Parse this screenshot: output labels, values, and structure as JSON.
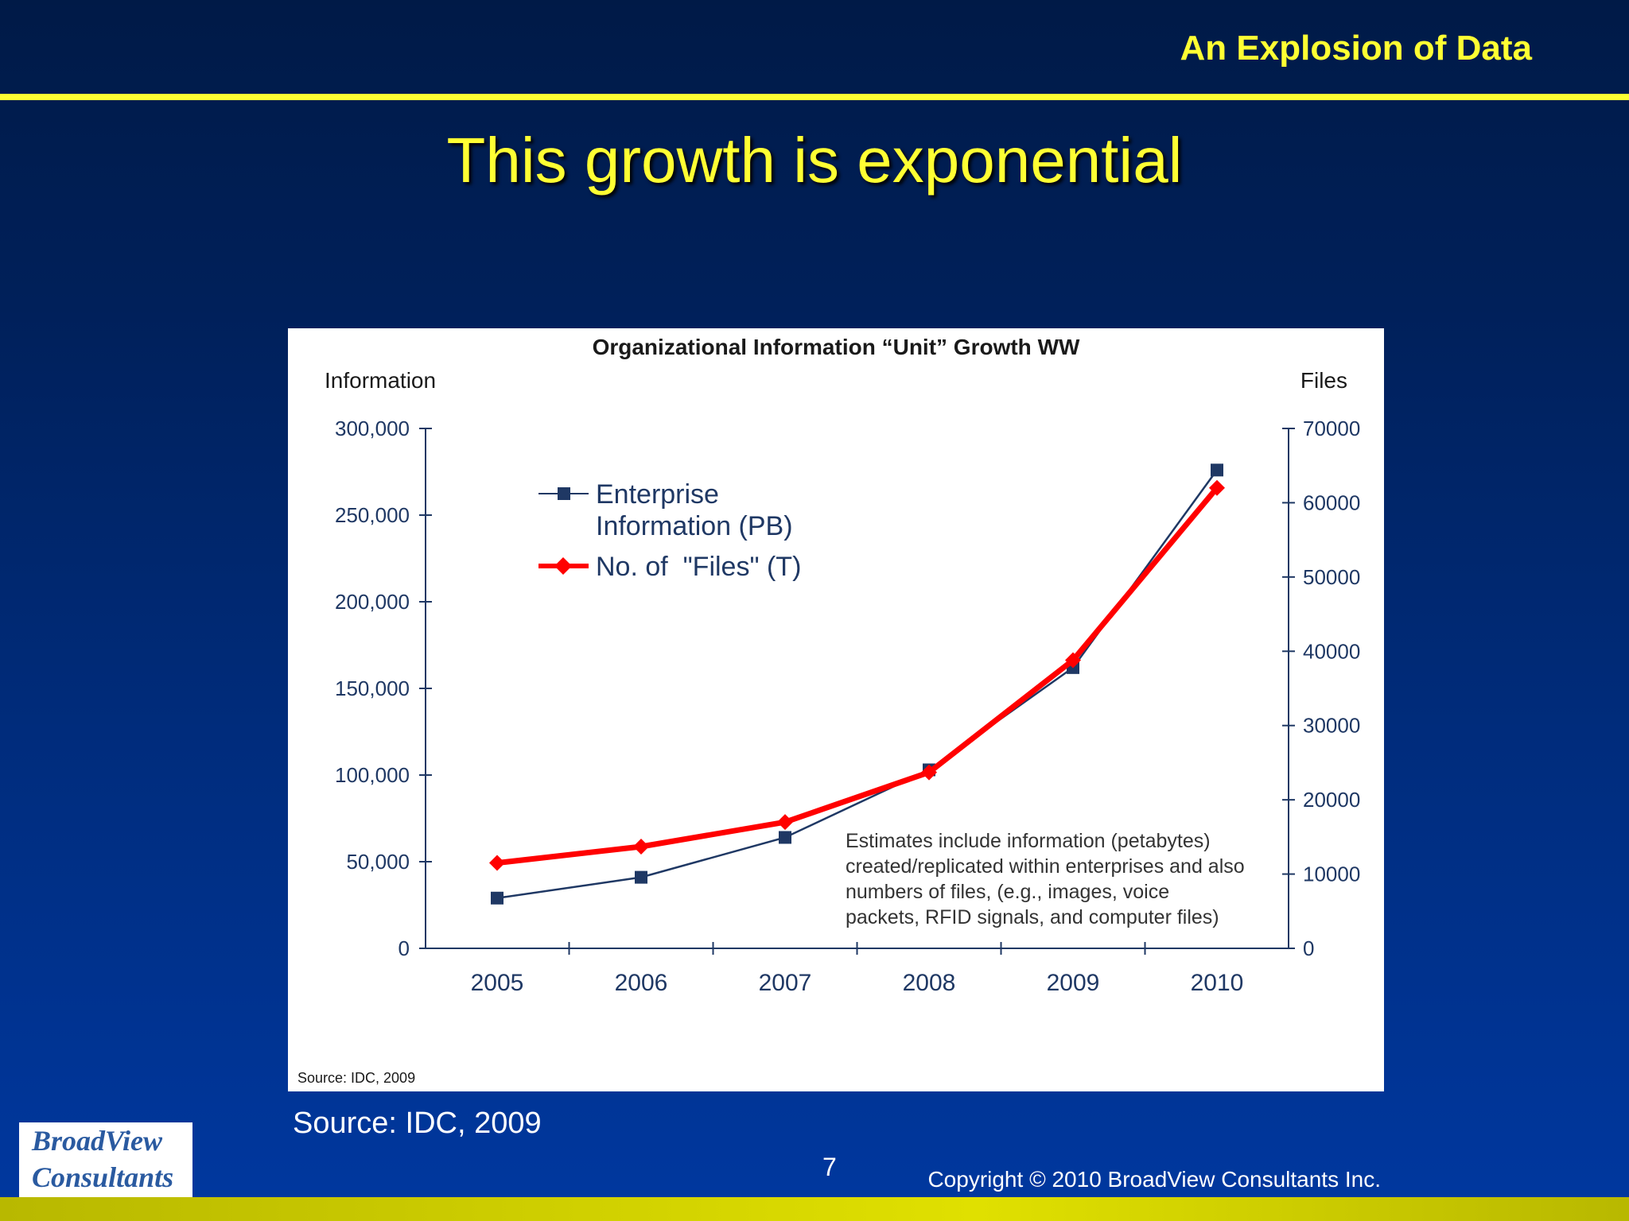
{
  "header": {
    "title": "An Explosion of Data"
  },
  "slide": {
    "title": "This growth is exponential",
    "source": "Source: IDC, 2009",
    "page": "7"
  },
  "footer": {
    "copyright": "Copyright © 2010 BroadView Consultants Inc.",
    "logo_line1": "BroadView",
    "logo_line2": "Consultants"
  },
  "colors": {
    "accent": "#ffff33",
    "series_info": "#1f3864",
    "series_files": "#ff0000"
  },
  "chart_data": {
    "type": "line",
    "title": "Organizational Information “Unit” Growth WW",
    "ylabel": "Information",
    "y2label": "Files",
    "categories": [
      "2005",
      "2006",
      "2007",
      "2008",
      "2009",
      "2010"
    ],
    "y_ticks": [
      "0",
      "50,000",
      "100,000",
      "150,000",
      "200,000",
      "250,000",
      "300,000"
    ],
    "y2_ticks": [
      "0",
      "10000",
      "20000",
      "30000",
      "40000",
      "50000",
      "60000",
      "70000"
    ],
    "ylim": [
      0,
      300000
    ],
    "y2lim": [
      0,
      70000
    ],
    "series": [
      {
        "name": "Enterprise Information (PB)",
        "legend_line1": "Enterprise",
        "legend_line2": "Information (PB)",
        "axis": "left",
        "marker": "square",
        "values": [
          29000,
          41000,
          64000,
          103000,
          162000,
          276000
        ]
      },
      {
        "name": "No. of  \"Files\" (T)",
        "axis": "right",
        "marker": "diamond",
        "values": [
          11500,
          13700,
          17000,
          23700,
          38800,
          62000
        ]
      }
    ],
    "annotation": [
      "Estimates include information (petabytes)",
      "created/replicated within enterprises and also",
      "numbers of files, (e.g., images, voice",
      "packets, RFID signals, and computer files)"
    ],
    "source": "Source: IDC, 2009",
    "grid": false,
    "legend": "top-left"
  }
}
